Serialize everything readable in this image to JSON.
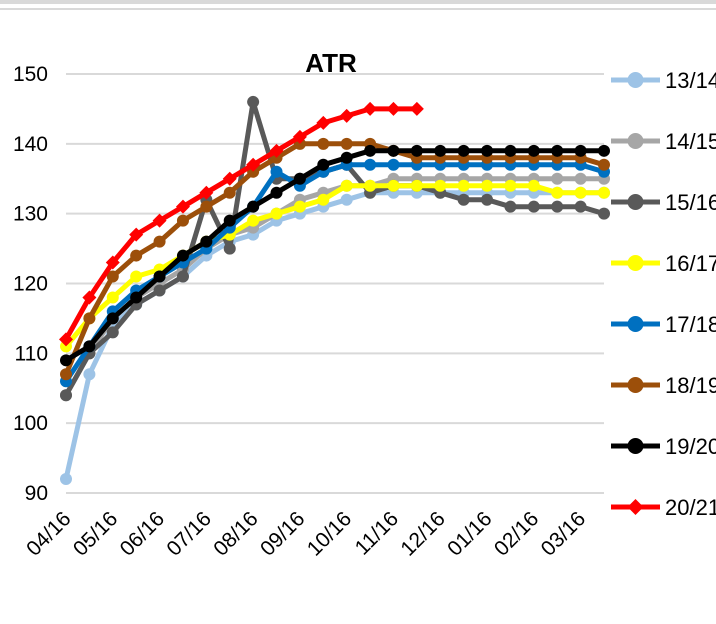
{
  "chart_data": {
    "type": "line",
    "title": "ATR",
    "xlabel": "",
    "ylabel": "",
    "ylim": [
      90,
      150
    ],
    "yticks": [
      90,
      100,
      110,
      120,
      130,
      140,
      150
    ],
    "x_tick_labels": [
      "04/16",
      "05/16",
      "06/16",
      "07/16",
      "08/16",
      "09/16",
      "10/16",
      "11/16",
      "12/16",
      "01/16",
      "02/16",
      "03/16"
    ],
    "grid": "horizontal",
    "legend_position": "right",
    "series": [
      {
        "name": "13/14",
        "color": "#9dc3e6",
        "marker": "circle",
        "values": [
          92,
          107,
          114,
          117,
          119,
          121,
          124,
          126,
          127,
          129,
          130,
          131,
          132,
          133,
          133,
          133,
          133,
          133,
          133,
          133,
          133,
          133,
          133,
          133
        ]
      },
      {
        "name": "14/15",
        "color": "#a6a6a6",
        "marker": "circle",
        "values": [
          104,
          110,
          115,
          118,
          120,
          122,
          125,
          127,
          128,
          130,
          132,
          133,
          134,
          134,
          135,
          135,
          135,
          135,
          135,
          135,
          135,
          135,
          135,
          135
        ]
      },
      {
        "name": "15/16",
        "color": "#595959",
        "marker": "circle",
        "values": [
          104,
          110,
          113,
          117,
          119,
          121,
          132,
          125,
          146,
          135,
          135,
          136,
          137,
          133,
          134,
          134,
          133,
          132,
          132,
          131,
          131,
          131,
          131,
          130
        ]
      },
      {
        "name": "16/17",
        "color": "#ffff00",
        "marker": "circle",
        "values": [
          111,
          115,
          118,
          121,
          122,
          124,
          126,
          127,
          129,
          130,
          131,
          132,
          134,
          134,
          134,
          134,
          134,
          134,
          134,
          134,
          134,
          133,
          133,
          133
        ]
      },
      {
        "name": "17/18",
        "color": "#0070c0",
        "marker": "circle",
        "values": [
          106,
          111,
          116,
          119,
          121,
          123,
          125,
          128,
          131,
          136,
          134,
          136,
          137,
          137,
          137,
          137,
          137,
          137,
          137,
          137,
          137,
          137,
          137,
          136
        ]
      },
      {
        "name": "18/19",
        "color": "#9c4f0a",
        "marker": "circle",
        "values": [
          107,
          115,
          121,
          124,
          126,
          129,
          131,
          133,
          136,
          138,
          140,
          140,
          140,
          140,
          139,
          138,
          138,
          138,
          138,
          138,
          138,
          138,
          138,
          137
        ]
      },
      {
        "name": "19/20",
        "color": "#000000",
        "marker": "circle",
        "values": [
          109,
          111,
          115,
          118,
          121,
          124,
          126,
          129,
          131,
          133,
          135,
          137,
          138,
          139,
          139,
          139,
          139,
          139,
          139,
          139,
          139,
          139,
          139,
          139
        ]
      },
      {
        "name": "20/21",
        "color": "#ff0000",
        "marker": "diamond",
        "values": [
          112,
          118,
          123,
          127,
          129,
          131,
          133,
          135,
          137,
          139,
          141,
          143,
          144,
          145,
          145,
          145,
          null,
          null,
          null,
          null,
          null,
          null,
          null,
          null
        ]
      }
    ]
  }
}
